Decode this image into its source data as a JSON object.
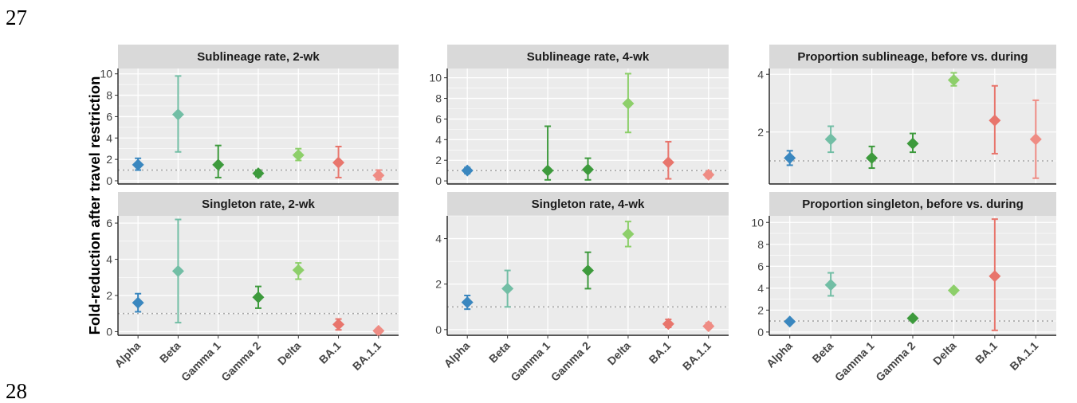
{
  "page": {
    "number_top": "27",
    "number_bottom": "28"
  },
  "figure": {
    "y_axis_label": "Fold-reduction after travel restriction",
    "categories": [
      "Alpha",
      "Beta",
      "Gamma 1",
      "Gamma 2",
      "Delta",
      "BA.1",
      "BA.1.1"
    ],
    "colors": {
      "Alpha": "#3a87bf",
      "Beta": "#72bea5",
      "Gamma 1": "#3d9a3c",
      "Gamma 2": "#3d9a3c",
      "Delta": "#8dcf6a",
      "BA.1": "#e8756c",
      "BA.1.1": "#ef8c84"
    },
    "panel_background": "#ebebeb",
    "strip_background": "#d9d9d9",
    "reference_line": 1
  },
  "chart_data": [
    {
      "type": "scatter",
      "title": "Sublineage rate, 2-wk",
      "ylim": [
        -0.3,
        10.5
      ],
      "yticks": [
        0,
        2,
        4,
        6,
        8,
        10
      ],
      "points": [
        {
          "category": "Alpha",
          "y": 1.5,
          "lo": 1.0,
          "hi": 2.1
        },
        {
          "category": "Beta",
          "y": 6.2,
          "lo": 2.7,
          "hi": 9.8
        },
        {
          "category": "Gamma 1",
          "y": 1.5,
          "lo": 0.3,
          "hi": 3.3
        },
        {
          "category": "Gamma 2",
          "y": 0.7,
          "lo": 0.4,
          "hi": 1.0
        },
        {
          "category": "Delta",
          "y": 2.4,
          "lo": 1.9,
          "hi": 3.0
        },
        {
          "category": "BA.1",
          "y": 1.7,
          "lo": 0.3,
          "hi": 3.2
        },
        {
          "category": "BA.1.1",
          "y": 0.5,
          "lo": 0.1,
          "hi": 1.0
        }
      ]
    },
    {
      "type": "scatter",
      "title": "Sublineage rate, 4-wk",
      "ylim": [
        -0.3,
        10.9
      ],
      "yticks": [
        0,
        2,
        4,
        6,
        8,
        10
      ],
      "points": [
        {
          "category": "Alpha",
          "y": 1.0,
          "lo": 0.7,
          "hi": 1.3
        },
        {
          "category": "Gamma 1",
          "y": 1.0,
          "lo": 0.1,
          "hi": 5.3
        },
        {
          "category": "Gamma 2",
          "y": 1.1,
          "lo": 0.1,
          "hi": 2.2
        },
        {
          "category": "Delta",
          "y": 7.5,
          "lo": 4.7,
          "hi": 10.4
        },
        {
          "category": "BA.1",
          "y": 1.8,
          "lo": 0.2,
          "hi": 3.8
        },
        {
          "category": "BA.1.1",
          "y": 0.6,
          "lo": 0.3,
          "hi": 0.9
        }
      ]
    },
    {
      "type": "scatter",
      "title": "Proportion sublineage, before vs. during",
      "ylim": [
        0.2,
        4.2
      ],
      "yticks": [
        2,
        4
      ],
      "points": [
        {
          "category": "Alpha",
          "y": 1.1,
          "lo": 0.85,
          "hi": 1.35
        },
        {
          "category": "Beta",
          "y": 1.75,
          "lo": 1.3,
          "hi": 2.2
        },
        {
          "category": "Gamma 1",
          "y": 1.1,
          "lo": 0.75,
          "hi": 1.5
        },
        {
          "category": "Gamma 2",
          "y": 1.6,
          "lo": 1.3,
          "hi": 1.95
        },
        {
          "category": "Delta",
          "y": 3.8,
          "lo": 3.6,
          "hi": 4.05
        },
        {
          "category": "BA.1",
          "y": 2.4,
          "lo": 1.25,
          "hi": 3.6
        },
        {
          "category": "BA.1.1",
          "y": 1.75,
          "lo": 0.4,
          "hi": 3.1
        }
      ]
    },
    {
      "type": "scatter",
      "title": "Singleton rate, 2-wk",
      "ylim": [
        -0.2,
        6.4
      ],
      "yticks": [
        0,
        2,
        4,
        6
      ],
      "points": [
        {
          "category": "Alpha",
          "y": 1.6,
          "lo": 1.1,
          "hi": 2.1
        },
        {
          "category": "Beta",
          "y": 3.35,
          "lo": 0.5,
          "hi": 6.2
        },
        {
          "category": "Gamma 2",
          "y": 1.9,
          "lo": 1.3,
          "hi": 2.5
        },
        {
          "category": "Delta",
          "y": 3.4,
          "lo": 2.9,
          "hi": 3.8
        },
        {
          "category": "BA.1",
          "y": 0.4,
          "lo": 0.1,
          "hi": 0.7
        },
        {
          "category": "BA.1.1",
          "y": 0.05,
          "lo": 0.0,
          "hi": 0.1
        }
      ]
    },
    {
      "type": "scatter",
      "title": "Singleton rate, 4-wk",
      "ylim": [
        -0.25,
        5.0
      ],
      "yticks": [
        0,
        2,
        4
      ],
      "points": [
        {
          "category": "Alpha",
          "y": 1.2,
          "lo": 0.9,
          "hi": 1.5
        },
        {
          "category": "Beta",
          "y": 1.8,
          "lo": 1.0,
          "hi": 2.6
        },
        {
          "category": "Gamma 2",
          "y": 2.6,
          "lo": 1.8,
          "hi": 3.4
        },
        {
          "category": "Delta",
          "y": 4.2,
          "lo": 3.65,
          "hi": 4.75
        },
        {
          "category": "BA.1",
          "y": 0.25,
          "lo": 0.1,
          "hi": 0.45
        },
        {
          "category": "BA.1.1",
          "y": 0.15,
          "lo": 0.05,
          "hi": 0.3
        }
      ]
    },
    {
      "type": "scatter",
      "title": "Proportion singleton, before vs. during",
      "ylim": [
        -0.3,
        10.6
      ],
      "yticks": [
        0,
        2,
        4,
        6,
        8,
        10
      ],
      "points": [
        {
          "category": "Alpha",
          "y": 0.95,
          "lo": 0.85,
          "hi": 1.05
        },
        {
          "category": "Beta",
          "y": 4.3,
          "lo": 3.3,
          "hi": 5.4
        },
        {
          "category": "Gamma 2",
          "y": 1.25,
          "lo": 1.15,
          "hi": 1.35
        },
        {
          "category": "Delta",
          "y": 3.8,
          "lo": 3.7,
          "hi": 3.9
        },
        {
          "category": "BA.1",
          "y": 5.1,
          "lo": 0.15,
          "hi": 10.3
        },
        {
          "category": "BA.1.1",
          "y": null,
          "lo": null,
          "hi": null
        }
      ]
    }
  ]
}
